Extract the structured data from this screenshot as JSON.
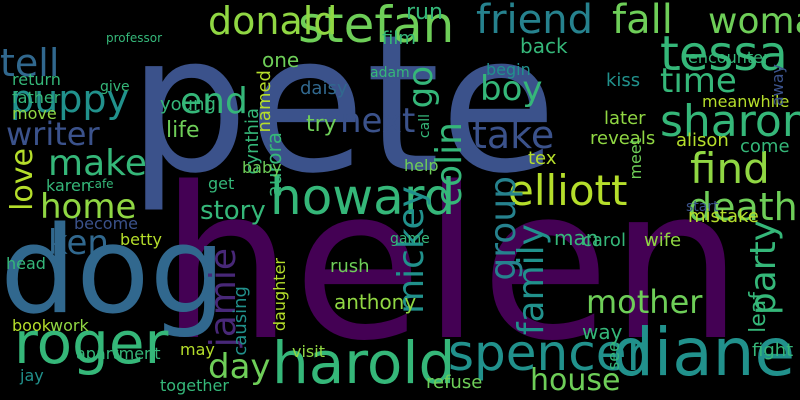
{
  "words": [
    {
      "text": "pete",
      "color": "#3b528b"
    },
    {
      "text": "helen",
      "color": "#440154"
    },
    {
      "text": "dog",
      "color": "#31688e"
    },
    {
      "text": "harold",
      "color": "#35b779"
    },
    {
      "text": "diane",
      "color": "#21918c"
    },
    {
      "text": "spencer",
      "color": "#21918c"
    },
    {
      "text": "roger",
      "color": "#35b779"
    },
    {
      "text": "howard",
      "color": "#35b779"
    },
    {
      "text": "stefan",
      "color": "#6ece58"
    },
    {
      "text": "tessa",
      "color": "#35b779"
    },
    {
      "text": "friend",
      "color": "#26828e"
    },
    {
      "text": "fall",
      "color": "#6ece58"
    },
    {
      "text": "woman",
      "color": "#6ece58"
    },
    {
      "text": "elliott",
      "color": "#b5de2b"
    },
    {
      "text": "find",
      "color": "#90d743"
    },
    {
      "text": "sharon",
      "color": "#35b779"
    },
    {
      "text": "death",
      "color": "#6ece58"
    },
    {
      "text": "donald",
      "color": "#90d743"
    },
    {
      "text": "tell",
      "color": "#31688e"
    },
    {
      "text": "puppy",
      "color": "#21918c"
    },
    {
      "text": "writer",
      "color": "#3b528b"
    },
    {
      "text": "make",
      "color": "#35b779"
    },
    {
      "text": "home",
      "color": "#90d743"
    },
    {
      "text": "love",
      "color": "#b5de2b"
    },
    {
      "text": "end",
      "color": "#35b779"
    },
    {
      "text": "take",
      "color": "#3b528b"
    },
    {
      "text": "time",
      "color": "#35b779"
    },
    {
      "text": "boy",
      "color": "#35b779"
    },
    {
      "text": "next",
      "color": "#3b528b"
    },
    {
      "text": "go",
      "color": "#35b779"
    },
    {
      "text": "colin",
      "color": "#35b779"
    },
    {
      "text": "mickey",
      "color": "#21918c"
    },
    {
      "text": "group",
      "color": "#26828e"
    },
    {
      "text": "family",
      "color": "#21918c"
    },
    {
      "text": "party",
      "color": "#35b779"
    },
    {
      "text": "mother",
      "color": "#6ece58"
    },
    {
      "text": "house",
      "color": "#6ece58"
    },
    {
      "text": "day",
      "color": "#6ece58"
    },
    {
      "text": "story",
      "color": "#35b779"
    },
    {
      "text": "jamie",
      "color": "#482878"
    },
    {
      "text": "ken",
      "color": "#31688e"
    },
    {
      "text": "life",
      "color": "#6ece58"
    },
    {
      "text": "try",
      "color": "#6ece58"
    },
    {
      "text": "young",
      "color": "#35b779"
    },
    {
      "text": "daisy",
      "color": "#31688e"
    },
    {
      "text": "film",
      "color": "#35b779"
    },
    {
      "text": "aurora",
      "color": "#35b779"
    },
    {
      "text": "cynthia",
      "color": "#35b779"
    },
    {
      "text": "named",
      "color": "#b5de2b"
    },
    {
      "text": "one",
      "color": "#6ece58"
    },
    {
      "text": "run",
      "color": "#35b779"
    },
    {
      "text": "back",
      "color": "#35b779"
    },
    {
      "text": "begin",
      "color": "#21918c"
    },
    {
      "text": "kiss",
      "color": "#21918c"
    },
    {
      "text": "adam",
      "color": "#35b779"
    },
    {
      "text": "later",
      "color": "#90d743"
    },
    {
      "text": "reveals",
      "color": "#90d743"
    },
    {
      "text": "meanwhile",
      "color": "#b5de2b"
    },
    {
      "text": "alison",
      "color": "#b5de2b"
    },
    {
      "text": "come",
      "color": "#35b779"
    },
    {
      "text": "encounter",
      "color": "#35b779"
    },
    {
      "text": "away",
      "color": "#3b528b"
    },
    {
      "text": "tex",
      "color": "#b5de2b"
    },
    {
      "text": "help",
      "color": "#6ece58"
    },
    {
      "text": "man",
      "color": "#35b779"
    },
    {
      "text": "carol",
      "color": "#35b779"
    },
    {
      "text": "wife",
      "color": "#90d743"
    },
    {
      "text": "mistake",
      "color": "#b5de2b"
    },
    {
      "text": "start",
      "color": "#3b528b"
    },
    {
      "text": "baby",
      "color": "#6ece58"
    },
    {
      "text": "get",
      "color": "#35b779"
    },
    {
      "text": "karen",
      "color": "#35b779"
    },
    {
      "text": "betty",
      "color": "#b5de2b"
    },
    {
      "text": "become",
      "color": "#3b528b"
    },
    {
      "text": "daughter",
      "color": "#b5de2b"
    },
    {
      "text": "anthony",
      "color": "#90d743"
    },
    {
      "text": "rush",
      "color": "#6ece58"
    },
    {
      "text": "book",
      "color": "#b5de2b"
    },
    {
      "text": "work",
      "color": "#90d743"
    },
    {
      "text": "causing",
      "color": "#21918c"
    },
    {
      "text": "visit",
      "color": "#90d743"
    },
    {
      "text": "refuse",
      "color": "#6ece58"
    },
    {
      "text": "way",
      "color": "#35b779"
    },
    {
      "text": "fight",
      "color": "#35b779"
    },
    {
      "text": "apartment",
      "color": "#35b779"
    },
    {
      "text": "together",
      "color": "#35b779"
    },
    {
      "text": "may",
      "color": "#b5de2b"
    },
    {
      "text": "jay",
      "color": "#21918c"
    },
    {
      "text": "return",
      "color": "#35b779"
    },
    {
      "text": "father",
      "color": "#35b779"
    },
    {
      "text": "move",
      "color": "#90d743"
    },
    {
      "text": "give",
      "color": "#35b779"
    },
    {
      "text": "head",
      "color": "#35b779"
    },
    {
      "text": "see",
      "color": "#35b779"
    },
    {
      "text": "meet",
      "color": "#6ece58"
    },
    {
      "text": "leaf",
      "color": "#35b779"
    },
    {
      "text": "game",
      "color": "#35b779"
    },
    {
      "text": "call",
      "color": "#35b779"
    },
    {
      "text": "professor",
      "color": "#35b779"
    },
    {
      "text": "cafe",
      "color": "#35b779"
    }
  ]
}
